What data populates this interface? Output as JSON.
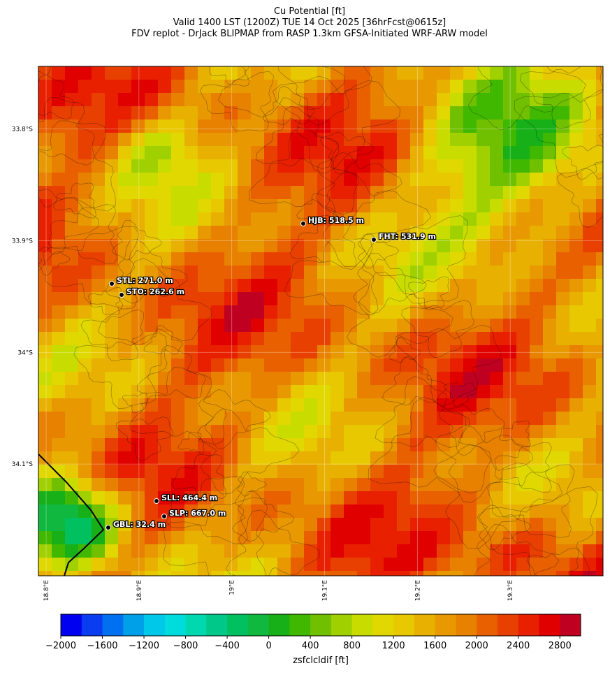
{
  "header": {
    "title": "Cu Potential [ft]",
    "subtitle": "Valid 1400 LST (1200Z) TUE 14 Oct 2025 [36hrFcst@0615z]",
    "source": "FDV replot - DrJack BLIPMAP from RASP 1.3km GFSA-Initiated WRF-ARW model"
  },
  "map": {
    "lonlim": [
      18.7917,
      19.4
    ],
    "latlim": [
      -34.2,
      -33.744
    ],
    "lat_ticks": [
      {
        "value": -33.8,
        "label": "33.8°S"
      },
      {
        "value": -33.9,
        "label": "33.9°S"
      },
      {
        "value": -34.0,
        "label": "34°S"
      },
      {
        "value": -34.1,
        "label": "34.1°S"
      }
    ],
    "lon_ticks": [
      {
        "value": 18.8,
        "label": "18.8°E"
      },
      {
        "value": 18.9,
        "label": "18.9°E"
      },
      {
        "value": 19.0,
        "label": "19°E"
      },
      {
        "value": 19.1,
        "label": "19.1°E"
      },
      {
        "value": 19.2,
        "label": "19.2°E"
      },
      {
        "value": 19.3,
        "label": "19.3°E"
      }
    ],
    "stations": [
      {
        "label": "HJB: 518.5 m"
      },
      {
        "label": "FHT: 531.9 m"
      },
      {
        "label": "STL: 271.0 m"
      },
      {
        "label": "STO: 262.6 m"
      },
      {
        "label": "SLL: 464.4 m"
      },
      {
        "label": "SLP: 667.0 m"
      },
      {
        "label": "GBL: 32.4 m"
      }
    ]
  },
  "colorbar": {
    "label": "zsfclcldif [ft]",
    "lim": [
      -2000,
      3000
    ],
    "ticks": [
      {
        "value": -2000,
        "label": "−2000"
      },
      {
        "value": -1600,
        "label": "−1600"
      },
      {
        "value": -1200,
        "label": "−1200"
      },
      {
        "value": -800,
        "label": "−800"
      },
      {
        "value": -400,
        "label": "−400"
      },
      0,
      400,
      800,
      1200,
      1600,
      2000,
      2400,
      2800
    ],
    "colors": [
      "#0000f0",
      "#0a3cf0",
      "#0070f0",
      "#00a0e8",
      "#00c8e8",
      "#00dcdc",
      "#00d8b0",
      "#00c888",
      "#00c060",
      "#10b840",
      "#18b018",
      "#40b800",
      "#70c000",
      "#a0d000",
      "#c8dc00",
      "#e0d800",
      "#e8c800",
      "#e8b000",
      "#e89800",
      "#e88000",
      "#e86000",
      "#e84000",
      "#e82000",
      "#e00000",
      "#c00020"
    ]
  }
}
